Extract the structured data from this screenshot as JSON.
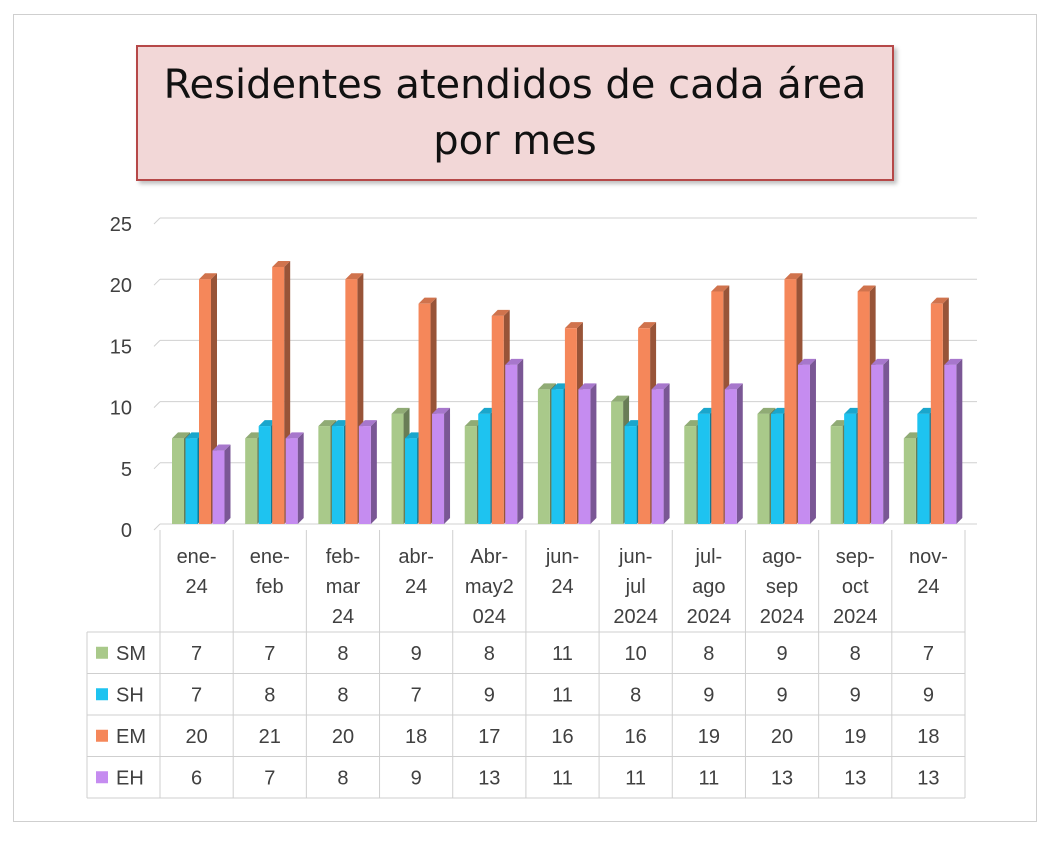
{
  "chart_data": {
    "type": "bar",
    "title": "Residentes atendidos de cada área por mes",
    "categories": [
      [
        "ene-",
        "24"
      ],
      [
        "ene-",
        "feb"
      ],
      [
        "feb-",
        "mar",
        "24"
      ],
      [
        "abr-",
        "24"
      ],
      [
        "Abr-",
        "may2",
        "024"
      ],
      [
        "jun-",
        "24"
      ],
      [
        "jun-",
        "jul",
        "2024"
      ],
      [
        "jul-",
        "ago",
        "2024"
      ],
      [
        "ago-",
        "sep",
        "2024"
      ],
      [
        "sep-",
        "oct",
        "2024"
      ],
      [
        "nov-",
        "24"
      ]
    ],
    "series": [
      {
        "name": "SM",
        "color": "#a9c98a",
        "values": [
          7,
          7,
          8,
          9,
          8,
          11,
          10,
          8,
          9,
          8,
          7
        ]
      },
      {
        "name": "SH",
        "color": "#1ec3f0",
        "values": [
          7,
          8,
          8,
          7,
          9,
          11,
          8,
          9,
          9,
          9,
          9
        ]
      },
      {
        "name": "EM",
        "color": "#f5875a",
        "values": [
          20,
          21,
          20,
          18,
          17,
          16,
          16,
          19,
          20,
          19,
          18
        ]
      },
      {
        "name": "EH",
        "color": "#c58cf0",
        "values": [
          6,
          7,
          8,
          9,
          13,
          11,
          11,
          11,
          13,
          13,
          13
        ]
      }
    ],
    "ylim": [
      0,
      25
    ],
    "yticks": [
      0,
      5,
      10,
      15,
      20,
      25
    ],
    "grid": true,
    "legend": "data-table"
  }
}
